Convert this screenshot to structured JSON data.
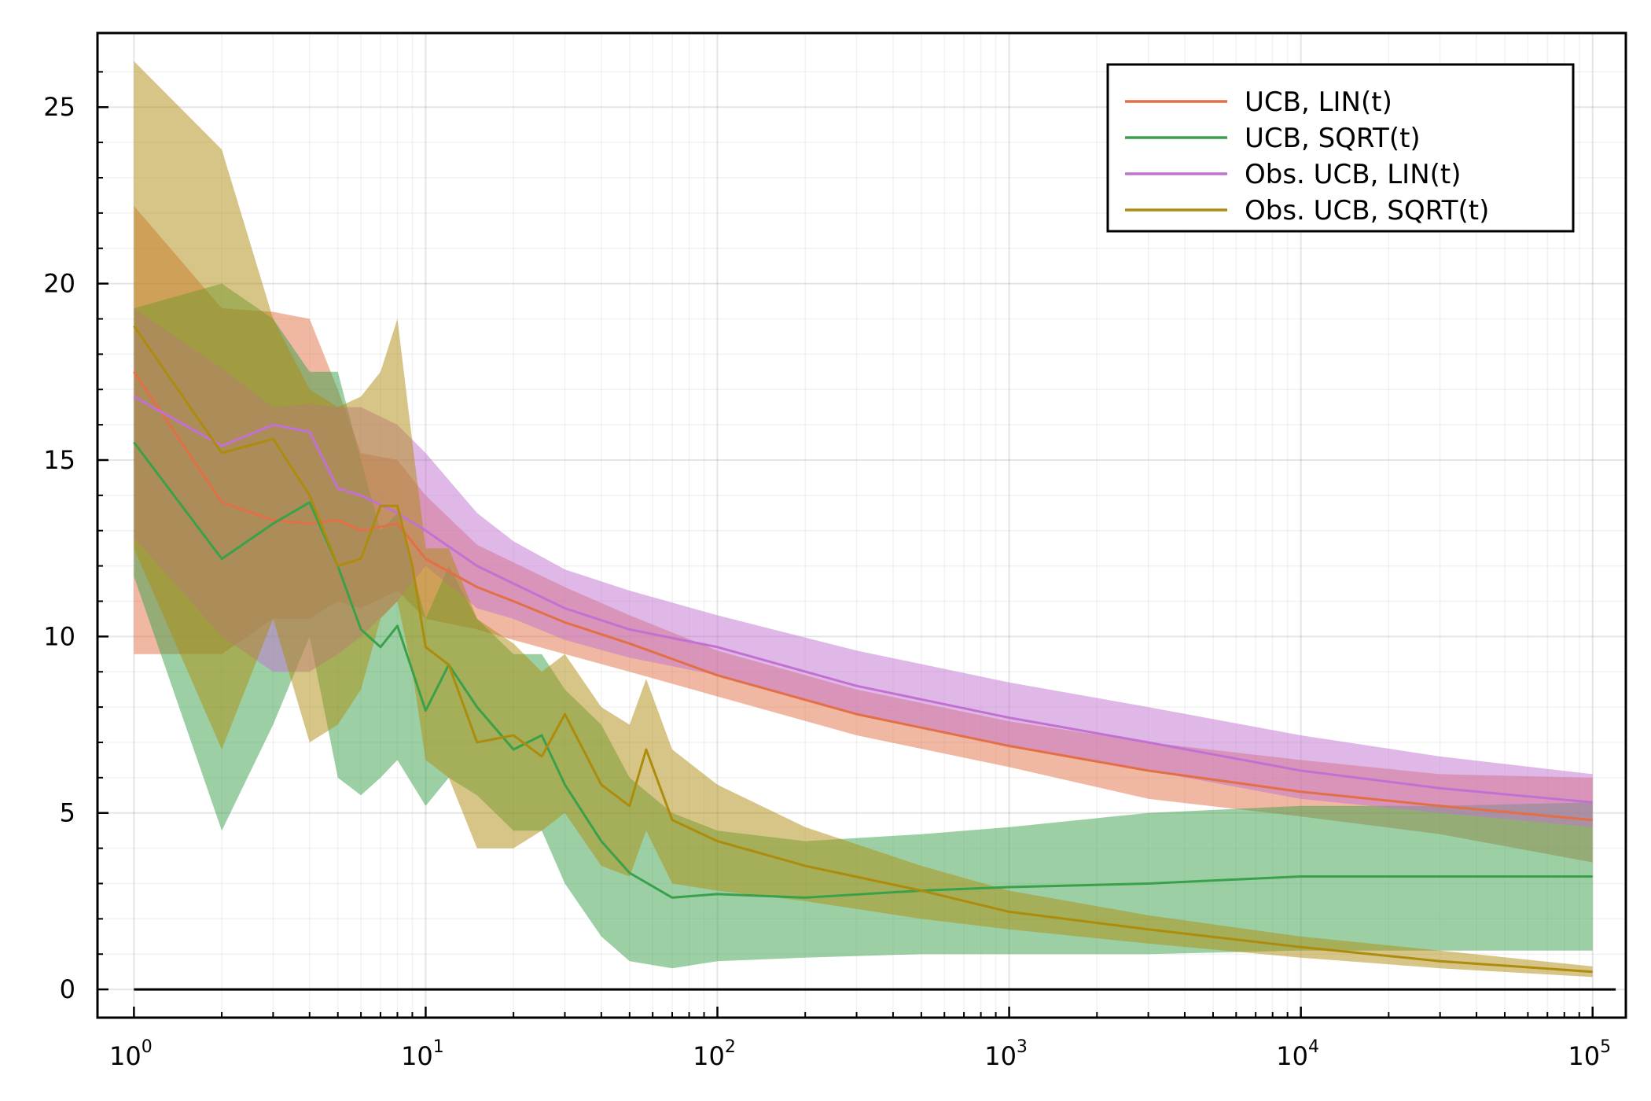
{
  "chart_data": {
    "type": "line",
    "title": "",
    "xlabel": "",
    "ylabel": "",
    "xscale": "log10",
    "xlim": [
      0.75,
      130000
    ],
    "ylim": [
      -0.8,
      27.1
    ],
    "x_ticks": [
      {
        "value": 1,
        "base": "10",
        "exp": "0"
      },
      {
        "value": 10,
        "base": "10",
        "exp": "1"
      },
      {
        "value": 100,
        "base": "10",
        "exp": "2"
      },
      {
        "value": 1000,
        "base": "10",
        "exp": "3"
      },
      {
        "value": 10000,
        "base": "10",
        "exp": "4"
      },
      {
        "value": 100000,
        "base": "10",
        "exp": "5"
      }
    ],
    "y_ticks": [
      {
        "value": 0,
        "label": "0"
      },
      {
        "value": 5,
        "label": "5"
      },
      {
        "value": 10,
        "label": "10"
      },
      {
        "value": 15,
        "label": "15"
      },
      {
        "value": 20,
        "label": "20"
      },
      {
        "value": 25,
        "label": "25"
      }
    ],
    "grid": true,
    "legend_position": "top-right",
    "reference_line": {
      "y": 0,
      "x_from": 1,
      "x_to": 120000
    },
    "series": [
      {
        "name": "UCB, LIN(t)",
        "color": "#e26f46",
        "band_opacity": 0.5,
        "points": [
          {
            "x": 1,
            "y": 17.5,
            "lo": 9.5,
            "hi": 22.2
          },
          {
            "x": 2,
            "y": 13.8,
            "lo": 9.5,
            "hi": 19.3
          },
          {
            "x": 3,
            "y": 13.3,
            "lo": 10.5,
            "hi": 19.2
          },
          {
            "x": 4,
            "y": 13.2,
            "lo": 10.5,
            "hi": 19.0
          },
          {
            "x": 5,
            "y": 13.3,
            "lo": 11.0,
            "hi": 17.0
          },
          {
            "x": 6,
            "y": 13.0,
            "lo": 10.8,
            "hi": 15.2
          },
          {
            "x": 8,
            "y": 13.2,
            "lo": 11.3,
            "hi": 15.0
          },
          {
            "x": 10,
            "y": 12.2,
            "lo": 10.5,
            "hi": 14.0
          },
          {
            "x": 15,
            "y": 11.4,
            "lo": 10.2,
            "hi": 12.6
          },
          {
            "x": 20,
            "y": 11.0,
            "lo": 9.9,
            "hi": 12.1
          },
          {
            "x": 30,
            "y": 10.4,
            "lo": 9.5,
            "hi": 11.4
          },
          {
            "x": 50,
            "y": 9.8,
            "lo": 9.0,
            "hi": 10.6
          },
          {
            "x": 100,
            "y": 8.9,
            "lo": 8.3,
            "hi": 9.6
          },
          {
            "x": 300,
            "y": 7.8,
            "lo": 7.2,
            "hi": 8.5
          },
          {
            "x": 1000,
            "y": 6.9,
            "lo": 6.3,
            "hi": 7.6
          },
          {
            "x": 3000,
            "y": 6.2,
            "lo": 5.4,
            "hi": 7.0
          },
          {
            "x": 10000,
            "y": 5.6,
            "lo": 4.9,
            "hi": 6.5
          },
          {
            "x": 30000,
            "y": 5.2,
            "lo": 4.4,
            "hi": 6.1
          },
          {
            "x": 100000,
            "y": 4.8,
            "lo": 3.6,
            "hi": 6.0
          }
        ]
      },
      {
        "name": "UCB, SQRT(t)",
        "color": "#3aa14a",
        "band_opacity": 0.5,
        "points": [
          {
            "x": 1,
            "y": 15.5,
            "lo": 11.7,
            "hi": 19.3
          },
          {
            "x": 2,
            "y": 12.2,
            "lo": 4.5,
            "hi": 20.0
          },
          {
            "x": 3,
            "y": 13.2,
            "lo": 7.5,
            "hi": 19.0
          },
          {
            "x": 4,
            "y": 13.8,
            "lo": 10.0,
            "hi": 17.5
          },
          {
            "x": 5,
            "y": 12.0,
            "lo": 6.0,
            "hi": 17.5
          },
          {
            "x": 6,
            "y": 10.2,
            "lo": 5.5,
            "hi": 15.0
          },
          {
            "x": 7,
            "y": 9.7,
            "lo": 6.0,
            "hi": 13.0
          },
          {
            "x": 8,
            "y": 10.3,
            "lo": 6.5,
            "hi": 13.5
          },
          {
            "x": 10,
            "y": 7.9,
            "lo": 5.2,
            "hi": 10.5
          },
          {
            "x": 12,
            "y": 9.2,
            "lo": 6.0,
            "hi": 12.0
          },
          {
            "x": 15,
            "y": 8.0,
            "lo": 5.5,
            "hi": 10.5
          },
          {
            "x": 20,
            "y": 6.8,
            "lo": 4.5,
            "hi": 9.5
          },
          {
            "x": 25,
            "y": 7.2,
            "lo": 4.5,
            "hi": 9.5
          },
          {
            "x": 30,
            "y": 5.8,
            "lo": 3.0,
            "hi": 8.5
          },
          {
            "x": 40,
            "y": 4.2,
            "lo": 1.5,
            "hi": 7.5
          },
          {
            "x": 50,
            "y": 3.3,
            "lo": 0.8,
            "hi": 6.0
          },
          {
            "x": 70,
            "y": 2.6,
            "lo": 0.6,
            "hi": 5.0
          },
          {
            "x": 100,
            "y": 2.7,
            "lo": 0.8,
            "hi": 4.5
          },
          {
            "x": 200,
            "y": 2.6,
            "lo": 0.9,
            "hi": 4.2
          },
          {
            "x": 500,
            "y": 2.8,
            "lo": 1.0,
            "hi": 4.4
          },
          {
            "x": 1000,
            "y": 2.9,
            "lo": 1.0,
            "hi": 4.6
          },
          {
            "x": 3000,
            "y": 3.0,
            "lo": 1.0,
            "hi": 5.0
          },
          {
            "x": 10000,
            "y": 3.2,
            "lo": 1.1,
            "hi": 5.2
          },
          {
            "x": 30000,
            "y": 3.2,
            "lo": 1.1,
            "hi": 5.2
          },
          {
            "x": 100000,
            "y": 3.2,
            "lo": 1.1,
            "hi": 5.3
          }
        ]
      },
      {
        "name": "Obs. UCB, LIN(t)",
        "color": "#c271d2",
        "band_opacity": 0.5,
        "points": [
          {
            "x": 1,
            "y": 16.8,
            "lo": 12.8,
            "hi": 19.3
          },
          {
            "x": 2,
            "y": 15.4,
            "lo": 10.0,
            "hi": 17.6
          },
          {
            "x": 3,
            "y": 16.0,
            "lo": 9.0,
            "hi": 16.5
          },
          {
            "x": 4,
            "y": 15.8,
            "lo": 9.0,
            "hi": 16.6
          },
          {
            "x": 5,
            "y": 14.2,
            "lo": 9.5,
            "hi": 16.5
          },
          {
            "x": 6,
            "y": 14.0,
            "lo": 10.0,
            "hi": 16.5
          },
          {
            "x": 8,
            "y": 13.5,
            "lo": 11.0,
            "hi": 16.0
          },
          {
            "x": 10,
            "y": 13.0,
            "lo": 12.0,
            "hi": 15.2
          },
          {
            "x": 15,
            "y": 12.0,
            "lo": 10.8,
            "hi": 13.5
          },
          {
            "x": 20,
            "y": 11.5,
            "lo": 10.5,
            "hi": 12.7
          },
          {
            "x": 30,
            "y": 10.8,
            "lo": 9.9,
            "hi": 11.9
          },
          {
            "x": 50,
            "y": 10.2,
            "lo": 9.4,
            "hi": 11.3
          },
          {
            "x": 100,
            "y": 9.7,
            "lo": 8.9,
            "hi": 10.6
          },
          {
            "x": 300,
            "y": 8.6,
            "lo": 7.8,
            "hi": 9.6
          },
          {
            "x": 1000,
            "y": 7.7,
            "lo": 6.9,
            "hi": 8.7
          },
          {
            "x": 3000,
            "y": 7.0,
            "lo": 6.2,
            "hi": 8.0
          },
          {
            "x": 10000,
            "y": 6.2,
            "lo": 5.4,
            "hi": 7.2
          },
          {
            "x": 30000,
            "y": 5.7,
            "lo": 5.0,
            "hi": 6.6
          },
          {
            "x": 100000,
            "y": 5.3,
            "lo": 4.6,
            "hi": 6.1
          }
        ]
      },
      {
        "name": "Obs. UCB, SQRT(t)",
        "color": "#ad8c0d",
        "band_opacity": 0.5,
        "points": [
          {
            "x": 1,
            "y": 18.8,
            "lo": 12.5,
            "hi": 26.3
          },
          {
            "x": 2,
            "y": 15.2,
            "lo": 6.8,
            "hi": 23.8
          },
          {
            "x": 3,
            "y": 15.6,
            "lo": 10.5,
            "hi": 19.0
          },
          {
            "x": 4,
            "y": 14.0,
            "lo": 7.0,
            "hi": 17.0
          },
          {
            "x": 5,
            "y": 12.0,
            "lo": 7.5,
            "hi": 16.5
          },
          {
            "x": 6,
            "y": 12.2,
            "lo": 8.5,
            "hi": 16.8
          },
          {
            "x": 7,
            "y": 13.7,
            "lo": 10.5,
            "hi": 17.5
          },
          {
            "x": 8,
            "y": 13.7,
            "lo": 11.0,
            "hi": 19.0
          },
          {
            "x": 9,
            "y": 12.0,
            "lo": 9.0,
            "hi": 15.5
          },
          {
            "x": 10,
            "y": 9.7,
            "lo": 6.5,
            "hi": 12.5
          },
          {
            "x": 12,
            "y": 9.2,
            "lo": 6.0,
            "hi": 12.5
          },
          {
            "x": 15,
            "y": 7.0,
            "lo": 4.0,
            "hi": 10.5
          },
          {
            "x": 20,
            "y": 7.2,
            "lo": 4.0,
            "hi": 9.8
          },
          {
            "x": 25,
            "y": 6.6,
            "lo": 4.5,
            "hi": 9.0
          },
          {
            "x": 30,
            "y": 7.8,
            "lo": 5.0,
            "hi": 9.5
          },
          {
            "x": 40,
            "y": 5.8,
            "lo": 3.5,
            "hi": 8.0
          },
          {
            "x": 50,
            "y": 5.2,
            "lo": 3.2,
            "hi": 7.5
          },
          {
            "x": 57,
            "y": 6.8,
            "lo": 4.5,
            "hi": 8.8
          },
          {
            "x": 70,
            "y": 4.8,
            "lo": 3.0,
            "hi": 6.8
          },
          {
            "x": 100,
            "y": 4.2,
            "lo": 2.8,
            "hi": 5.8
          },
          {
            "x": 200,
            "y": 3.5,
            "lo": 2.5,
            "hi": 4.6
          },
          {
            "x": 500,
            "y": 2.8,
            "lo": 2.0,
            "hi": 3.5
          },
          {
            "x": 1000,
            "y": 2.2,
            "lo": 1.7,
            "hi": 2.8
          },
          {
            "x": 3000,
            "y": 1.7,
            "lo": 1.3,
            "hi": 2.1
          },
          {
            "x": 10000,
            "y": 1.2,
            "lo": 0.9,
            "hi": 1.5
          },
          {
            "x": 30000,
            "y": 0.8,
            "lo": 0.6,
            "hi": 1.1
          },
          {
            "x": 100000,
            "y": 0.5,
            "lo": 0.35,
            "hi": 0.65
          }
        ]
      }
    ]
  }
}
